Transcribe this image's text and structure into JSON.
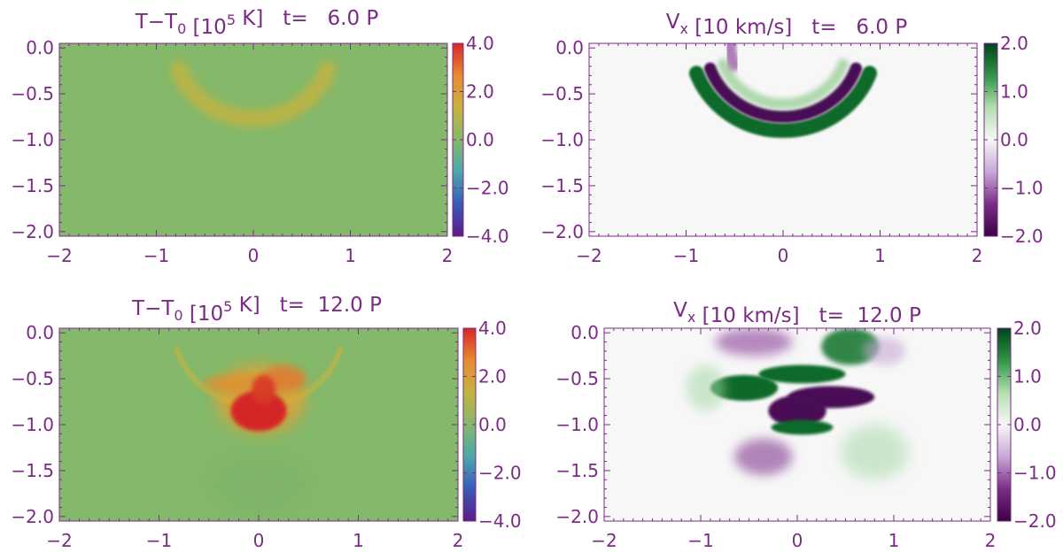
{
  "figure": {
    "text_color": "#7b2b86",
    "axis_color": "#7b2b86"
  },
  "chart_data": [
    {
      "type": "heatmap",
      "title_main": "T−T",
      "title_sub": "0",
      "title_unit_open": "[10",
      "title_sup": "5",
      "title_unit_close": " K]",
      "title_time": "t=   6.0 P",
      "field": "temperature",
      "time_periods": 6.0,
      "xlim": [
        -2,
        2
      ],
      "ylim": [
        -2.05,
        0.05
      ],
      "xticks": [
        -2,
        -1,
        0,
        1,
        2
      ],
      "xtick_labels": [
        "−2",
        "−1",
        "0",
        "1",
        "2"
      ],
      "yticks": [
        0.0,
        -0.5,
        -1.0,
        -1.5,
        -2.0
      ],
      "ytick_labels": [
        "0.0",
        "−0.5",
        "−1.0",
        "−1.5",
        "−2.0"
      ],
      "colorbar": {
        "range": [
          -4.0,
          4.0
        ],
        "ticks": [
          4.0,
          2.0,
          0.0,
          -2.0,
          -4.0
        ],
        "tick_labels": [
          "4.0",
          "2.0",
          "0.0",
          "−2.0",
          "−4.0"
        ],
        "colors": [
          "#5b1a86",
          "#3a5ab8",
          "#4aa8a8",
          "#84b86a",
          "#c4b440",
          "#e88a30",
          "#d42828"
        ]
      },
      "background_color": "#84b86a",
      "features": [
        {
          "kind": "arc",
          "cx": 0.0,
          "cy": 0.05,
          "r": 0.82,
          "start_deg": 200,
          "end_deg": 340,
          "width": 0.18,
          "value": 1.2,
          "color": "#c4b440",
          "opacity": 0.85,
          "blur": 5
        }
      ]
    },
    {
      "type": "heatmap",
      "title_main": "V",
      "title_sub": "x",
      "title_unit_open": "[10 km/s]",
      "title_sup": "",
      "title_unit_close": "",
      "title_time": "t=   6.0 P",
      "field": "velocity_x",
      "time_periods": 6.0,
      "xlim": [
        -2,
        2
      ],
      "ylim": [
        -2.05,
        0.05
      ],
      "xticks": [
        -2,
        -1,
        0,
        1,
        2
      ],
      "xtick_labels": [
        "−2",
        "−1",
        "0",
        "1",
        "2"
      ],
      "yticks": [
        0.0,
        -0.5,
        -1.0,
        -1.5,
        -2.0
      ],
      "ytick_labels": [
        "0.0",
        "−0.5",
        "−1.0",
        "−1.5",
        "−2.0"
      ],
      "colorbar": {
        "range": [
          -2.0,
          2.0
        ],
        "ticks": [
          2.0,
          1.0,
          0.0,
          -1.0,
          -2.0
        ],
        "tick_labels": [
          "2.0",
          "1.0",
          "0.0",
          "−1.0",
          "−2.0"
        ],
        "colors": [
          "#3d0045",
          "#7a2e86",
          "#c8a8d6",
          "#f7f7f7",
          "#b4deb0",
          "#2f9546",
          "#00441b"
        ]
      },
      "background_color": "#f7f7f7",
      "features": [
        {
          "kind": "arc",
          "cx": 0.0,
          "cy": 0.05,
          "r": 0.95,
          "start_deg": 200,
          "end_deg": 340,
          "width": 0.16,
          "value": 1.8,
          "color": "#0f6b2c",
          "opacity": 1,
          "blur": 1.2
        },
        {
          "kind": "arc",
          "cx": 0.0,
          "cy": 0.05,
          "r": 0.8,
          "start_deg": 200,
          "end_deg": 340,
          "width": 0.13,
          "value": -2.0,
          "color": "#4a0a55",
          "opacity": 1,
          "blur": 1.2
        },
        {
          "kind": "arc",
          "cx": 0.0,
          "cy": 0.05,
          "r": 0.66,
          "start_deg": 200,
          "end_deg": 340,
          "width": 0.12,
          "value": 0.6,
          "color": "#7fc47f",
          "opacity": 0.6,
          "blur": 3
        },
        {
          "kind": "arc",
          "cx": 0.0,
          "cy": 0.05,
          "r": 0.55,
          "start_deg": 160,
          "end_deg": 205,
          "width": 0.14,
          "value": -1.2,
          "color": "#8e4a9a",
          "opacity": 0.7,
          "blur": 3
        }
      ]
    },
    {
      "type": "heatmap",
      "title_main": "T−T",
      "title_sub": "0",
      "title_unit_open": "[10",
      "title_sup": "5",
      "title_unit_close": " K]",
      "title_time": "t=  12.0 P",
      "field": "temperature",
      "time_periods": 12.0,
      "xlim": [
        -2,
        2
      ],
      "ylim": [
        -2.05,
        0.05
      ],
      "xticks": [
        -2,
        -1,
        0,
        1,
        2
      ],
      "xtick_labels": [
        "−2",
        "−1",
        "0",
        "1",
        "2"
      ],
      "yticks": [
        0.0,
        -0.5,
        -1.0,
        -1.5,
        -2.0
      ],
      "ytick_labels": [
        "0.0",
        "−0.5",
        "−1.0",
        "−1.5",
        "−2.0"
      ],
      "colorbar": {
        "range": [
          -4.0,
          4.0
        ],
        "ticks": [
          4.0,
          2.0,
          0.0,
          -2.0,
          -4.0
        ],
        "tick_labels": [
          "4.0",
          "2.0",
          "0.0",
          "−2.0",
          "−4.0"
        ],
        "colors": [
          "#5b1a86",
          "#3a5ab8",
          "#4aa8a8",
          "#84b86a",
          "#c4b440",
          "#e88a30",
          "#d42828"
        ]
      },
      "background_color": "#84b86a",
      "features": [
        {
          "kind": "arc",
          "cx": 0.0,
          "cy": 0.05,
          "r": 0.85,
          "start_deg": 195,
          "end_deg": 345,
          "width": 0.05,
          "value": 1.5,
          "color": "#c4b440",
          "opacity": 0.8,
          "blur": 1.5
        },
        {
          "kind": "ellipse",
          "cx": 0.02,
          "cy": -0.72,
          "rx": 0.45,
          "ry": 0.38,
          "value": 2.5,
          "color": "#e8a030",
          "opacity": 0.75,
          "blur": 8
        },
        {
          "kind": "ellipse",
          "cx": -0.2,
          "cy": -0.55,
          "rx": 0.35,
          "ry": 0.1,
          "value": 2.0,
          "color": "#e09030",
          "opacity": 0.8,
          "blur": 4
        },
        {
          "kind": "ellipse",
          "cx": 0.25,
          "cy": -0.5,
          "rx": 0.22,
          "ry": 0.14,
          "value": 2.5,
          "color": "#e07a30",
          "opacity": 0.85,
          "blur": 4
        },
        {
          "kind": "ellipse",
          "cx": 0.0,
          "cy": -0.85,
          "rx": 0.28,
          "ry": 0.22,
          "value": 4.0,
          "color": "#d42828",
          "opacity": 1,
          "blur": 2.5
        },
        {
          "kind": "ellipse",
          "cx": 0.05,
          "cy": -0.62,
          "rx": 0.12,
          "ry": 0.16,
          "value": 3.5,
          "color": "#d83a28",
          "opacity": 0.95,
          "blur": 3
        },
        {
          "kind": "ellipse",
          "cx": 0.0,
          "cy": -1.65,
          "rx": 0.5,
          "ry": 0.35,
          "value": -0.3,
          "color": "#79b06a",
          "opacity": 0.45,
          "blur": 10
        }
      ]
    },
    {
      "type": "heatmap",
      "title_main": "V",
      "title_sub": "x",
      "title_unit_open": "[10 km/s]",
      "title_sup": "",
      "title_unit_close": "",
      "title_time": "t=  12.0 P",
      "field": "velocity_x",
      "time_periods": 12.0,
      "xlim": [
        -2,
        2
      ],
      "ylim": [
        -2.05,
        0.05
      ],
      "xticks": [
        -2,
        -1,
        0,
        1,
        2
      ],
      "xtick_labels": [
        "−2",
        "−1",
        "0",
        "1",
        "2"
      ],
      "yticks": [
        0.0,
        -0.5,
        -1.0,
        -1.5,
        -2.0
      ],
      "ytick_labels": [
        "0.0",
        "−0.5",
        "−1.0",
        "−1.5",
        "−2.0"
      ],
      "colorbar": {
        "range": [
          -2.0,
          2.0
        ],
        "ticks": [
          2.0,
          1.0,
          0.0,
          -1.0,
          -2.0
        ],
        "tick_labels": [
          "2.0",
          "1.0",
          "0.0",
          "−1.0",
          "−2.0"
        ],
        "colors": [
          "#3d0045",
          "#7a2e86",
          "#c8a8d6",
          "#f7f7f7",
          "#b4deb0",
          "#2f9546",
          "#00441b"
        ]
      },
      "background_color": "#f7f7f7",
      "features": [
        {
          "kind": "ellipse",
          "cx": -0.45,
          "cy": -0.1,
          "rx": 0.4,
          "ry": 0.15,
          "value": -1.0,
          "color": "#9a5aa6",
          "opacity": 0.7,
          "blur": 6
        },
        {
          "kind": "ellipse",
          "cx": 0.55,
          "cy": -0.15,
          "rx": 0.3,
          "ry": 0.2,
          "value": 1.6,
          "color": "#1a7a34",
          "opacity": 0.9,
          "blur": 3
        },
        {
          "kind": "ellipse",
          "cx": 0.05,
          "cy": -0.45,
          "rx": 0.45,
          "ry": 0.1,
          "value": 1.8,
          "color": "#0f6b2c",
          "opacity": 1,
          "blur": 1.5
        },
        {
          "kind": "ellipse",
          "cx": -0.55,
          "cy": -0.6,
          "rx": 0.35,
          "ry": 0.14,
          "value": 1.8,
          "color": "#0f6b2c",
          "opacity": 1,
          "blur": 1.5
        },
        {
          "kind": "ellipse",
          "cx": 0.35,
          "cy": -0.7,
          "rx": 0.45,
          "ry": 0.12,
          "value": -2.0,
          "color": "#4a0a55",
          "opacity": 1,
          "blur": 1.5
        },
        {
          "kind": "ellipse",
          "cx": 0.0,
          "cy": -0.85,
          "rx": 0.3,
          "ry": 0.17,
          "value": -2.0,
          "color": "#4a0a55",
          "opacity": 1,
          "blur": 1.5
        },
        {
          "kind": "ellipse",
          "cx": 0.05,
          "cy": -1.03,
          "rx": 0.32,
          "ry": 0.08,
          "value": 1.8,
          "color": "#0f6b2c",
          "opacity": 1,
          "blur": 1.5
        },
        {
          "kind": "ellipse",
          "cx": -0.35,
          "cy": -1.35,
          "rx": 0.3,
          "ry": 0.2,
          "value": -1.0,
          "color": "#8a4a98",
          "opacity": 0.65,
          "blur": 6
        },
        {
          "kind": "ellipse",
          "cx": 0.8,
          "cy": -1.3,
          "rx": 0.35,
          "ry": 0.3,
          "value": 0.4,
          "color": "#a8d8a8",
          "opacity": 0.55,
          "blur": 8
        },
        {
          "kind": "ellipse",
          "cx": -0.95,
          "cy": -0.6,
          "rx": 0.2,
          "ry": 0.25,
          "value": 0.5,
          "color": "#a8d8a8",
          "opacity": 0.55,
          "blur": 6
        },
        {
          "kind": "ellipse",
          "cx": 0.9,
          "cy": -0.2,
          "rx": 0.22,
          "ry": 0.15,
          "value": -0.6,
          "color": "#c8a8d6",
          "opacity": 0.6,
          "blur": 5
        }
      ]
    }
  ]
}
